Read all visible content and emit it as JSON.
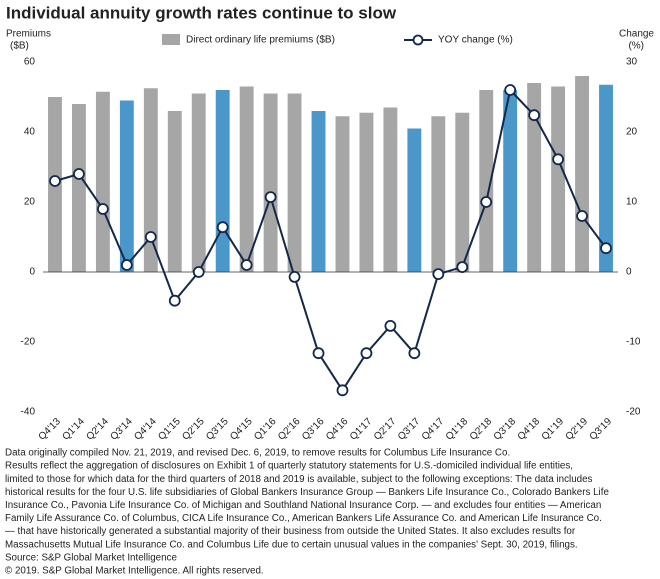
{
  "chart_data": {
    "type": "bar_line",
    "title": "Individual annuity growth rates continue to slow",
    "y_label": [
      "Premiums",
      "($B)"
    ],
    "y2_label": [
      "Change",
      "(%)"
    ],
    "categories": [
      "Q4'13",
      "Q1'14",
      "Q2'14",
      "Q3'14",
      "Q4'14",
      "Q1'15",
      "Q2'15",
      "Q3'15",
      "Q4'15",
      "Q1'16",
      "Q2'16",
      "Q3'16",
      "Q4'16",
      "Q1'17",
      "Q2'17",
      "Q3'17",
      "Q4'17",
      "Q1'18",
      "Q2'18",
      "Q3'18",
      "Q4'18",
      "Q1'19",
      "Q2'19",
      "Q3'19"
    ],
    "series": [
      {
        "name": "Direct ordinary life premiums ($B)",
        "type": "bar",
        "color": "#a6a6a6",
        "colors": [
          "#a6a6a6",
          "#a6a6a6",
          "#a6a6a6",
          "#4a98c9",
          "#a6a6a6",
          "#a6a6a6",
          "#a6a6a6",
          "#4a98c9",
          "#a6a6a6",
          "#a6a6a6",
          "#a6a6a6",
          "#4a98c9",
          "#a6a6a6",
          "#a6a6a6",
          "#a6a6a6",
          "#4a98c9",
          "#a6a6a6",
          "#a6a6a6",
          "#a6a6a6",
          "#4a98c9",
          "#a6a6a6",
          "#a6a6a6",
          "#a6a6a6",
          "#4a98c9"
        ],
        "values": [
          50,
          48,
          51.5,
          49,
          52.5,
          46,
          51,
          52,
          53,
          51,
          51,
          46,
          44.5,
          45.5,
          47,
          41,
          44.5,
          45.5,
          52,
          52,
          54,
          53,
          56,
          53.5
        ]
      },
      {
        "name": "YOY change (%)",
        "type": "line",
        "axis": "y2",
        "color": "#13284b",
        "values": [
          13,
          14,
          9,
          1,
          5,
          -4.1,
          0,
          6.4,
          1,
          10.7,
          -0.7,
          -11.6,
          -16.9,
          -11.6,
          -7.7,
          -11.6,
          -0.3,
          0.7,
          10,
          26,
          22.4,
          16.1,
          8,
          3.4
        ]
      }
    ],
    "ylim": [
      -40,
      60
    ],
    "yticks": [
      -40,
      -20,
      0,
      20,
      40,
      60
    ],
    "y2lim": [
      -20,
      30
    ],
    "y2ticks": [
      -20,
      -10,
      0,
      10,
      20,
      30
    ],
    "notes": [
      "Data originally compiled Nov. 21, 2019, and revised Dec. 6, 2019, to remove results for Columbus Life Insurance Co.",
      "Results reflect the aggregation of disclosures on Exhibit 1 of quarterly statutory statements for U.S.-domiciled individual life entities,",
      "limited to those for which data for the third quarters of 2018 and 2019 is available, subject to the following exceptions: The data includes",
      "historical results for the four U.S. life subsidiaries of Global Bankers Insurance Group — Bankers Life Insurance Co., Colorado Bankers Life",
      "Insurance Co., Pavonia Life Insurance Co. of Michigan and Southland National Insurance Corp. — and excludes four entities — American",
      "Family Life Assurance Co. of Columbus, CICA Life Insurance Co., American Bankers Life Assurance Co. and American Life Insurance Co.",
      "— that have historically generated a substantial majority of their business from outside the United States. It also excludes results for",
      "Massachusetts Mutual Life Insurance Co. and Columbus Life due to certain unusual values in the companies' Sept. 30, 2019, filings.",
      "Source: S&P Global Market Intelligence",
      "© 2019. S&P Global Market Intelligence. All rights reserved."
    ]
  }
}
